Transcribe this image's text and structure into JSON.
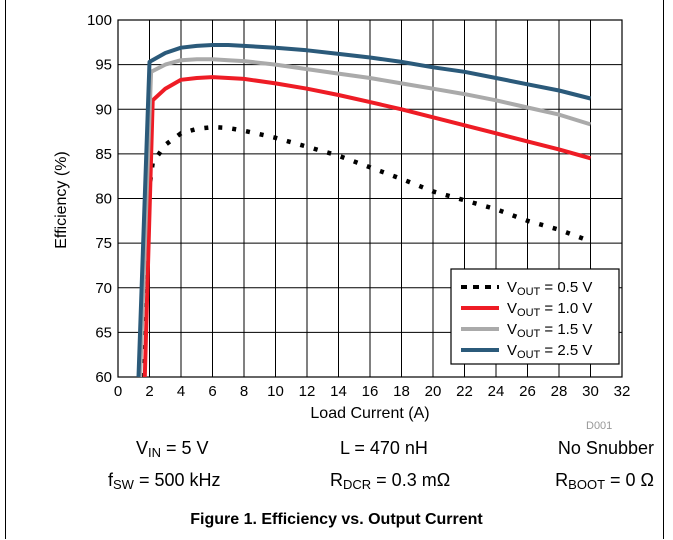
{
  "chart_data": {
    "type": "line",
    "xlabel": "Load Current (A)",
    "ylabel": "Efficiency (%)",
    "xlim": [
      0,
      32
    ],
    "ylim": [
      60,
      100
    ],
    "xticks": [
      "0",
      "2",
      "4",
      "6",
      "8",
      "10",
      "12",
      "14",
      "16",
      "18",
      "20",
      "22",
      "24",
      "26",
      "28",
      "30",
      "32"
    ],
    "yticks": [
      "60",
      "65",
      "70",
      "75",
      "80",
      "85",
      "90",
      "95",
      "100"
    ],
    "grid": true,
    "legend": "bottom-right",
    "series": [
      {
        "name": "V",
        "sub": "OUT",
        "value": " = 0.5 V",
        "color": "#000000",
        "style": "dotted",
        "x": [
          1.6,
          1.9,
          2.2,
          3,
          4,
          5,
          6,
          7,
          8,
          10,
          12,
          14,
          16,
          18,
          20,
          22,
          24,
          26,
          28,
          30
        ],
        "y": [
          60,
          80,
          84,
          86,
          87.3,
          87.8,
          88,
          87.9,
          87.6,
          86.8,
          85.8,
          84.8,
          83.5,
          82.2,
          80.8,
          79.8,
          78.8,
          77.5,
          76.5,
          75.2
        ]
      },
      {
        "name": "V",
        "sub": "OUT",
        "value": " = 1.0 V",
        "color": "#ee1c25",
        "style": "solid",
        "x": [
          1.7,
          2.2,
          3,
          4,
          5,
          6,
          7,
          8,
          10,
          12,
          14,
          16,
          18,
          20,
          22,
          24,
          26,
          28,
          30
        ],
        "y": [
          60,
          91,
          92.3,
          93.3,
          93.5,
          93.6,
          93.5,
          93.4,
          92.9,
          92.3,
          91.6,
          90.8,
          90.0,
          89.1,
          88.2,
          87.3,
          86.4,
          85.5,
          84.5
        ]
      },
      {
        "name": "V",
        "sub": "OUT",
        "value": " = 1.5 V",
        "color": "#aaaaaa",
        "style": "solid",
        "x": [
          1.4,
          2.1,
          3,
          4,
          5,
          6,
          7,
          8,
          10,
          12,
          14,
          16,
          18,
          20,
          22,
          24,
          26,
          28,
          30
        ],
        "y": [
          60,
          94.2,
          95.0,
          95.5,
          95.6,
          95.6,
          95.5,
          95.4,
          95.0,
          94.5,
          94.0,
          93.5,
          92.9,
          92.3,
          91.7,
          91.0,
          90.2,
          89.4,
          88.3
        ]
      },
      {
        "name": "V",
        "sub": "OUT",
        "value": " = 2.5 V",
        "color": "#2b5a7a",
        "style": "solid",
        "x": [
          1.3,
          2.0,
          3,
          4,
          5,
          6,
          7,
          8,
          10,
          12,
          14,
          16,
          18,
          20,
          22,
          24,
          26,
          28,
          30
        ],
        "y": [
          60,
          95.3,
          96.3,
          96.9,
          97.1,
          97.2,
          97.2,
          97.1,
          96.9,
          96.6,
          96.2,
          95.8,
          95.3,
          94.7,
          94.2,
          93.5,
          92.8,
          92.1,
          91.2
        ]
      }
    ]
  },
  "watermark": "D001",
  "conditions": [
    {
      "pre": "V",
      "sub": "IN",
      "post": " = 5 V"
    },
    {
      "pre": "L = 470 nH",
      "sub": "",
      "post": ""
    },
    {
      "pre": "No Snubber",
      "sub": "",
      "post": ""
    },
    {
      "pre": "f",
      "sub": "SW",
      "post": " = 500 kHz"
    },
    {
      "pre": "R",
      "sub": "DCR",
      "post": " = 0.3 mΩ"
    },
    {
      "pre": "R",
      "sub": "BOOT",
      "post": " = 0 Ω"
    }
  ],
  "caption": "Figure 1. Efficiency vs. Output Current"
}
